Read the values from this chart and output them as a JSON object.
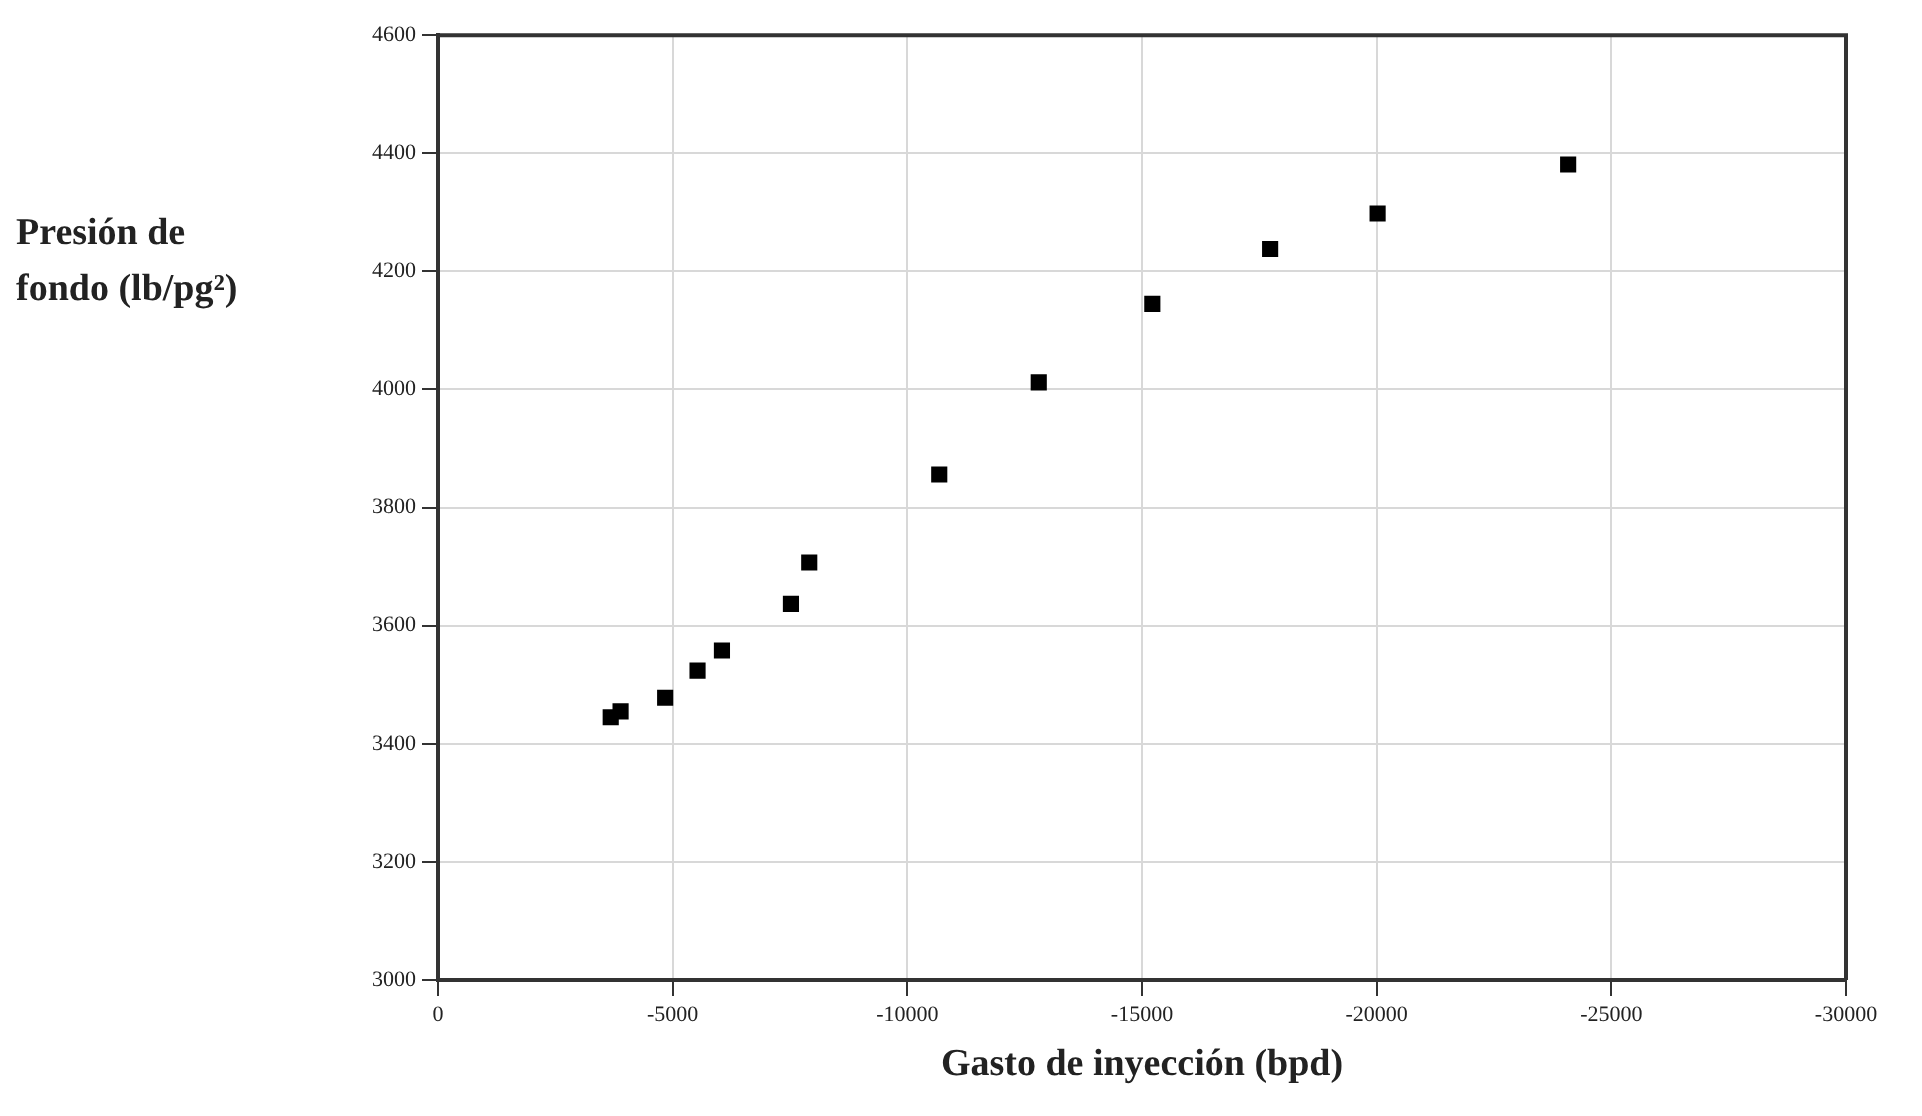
{
  "chart_data": {
    "type": "scatter",
    "xlabel": "Gasto de inyección (bpd)",
    "ylabel": "Presión de fondo (lb/pg²)",
    "x": [
      -3680,
      -3890,
      -4840,
      -5530,
      -6050,
      -7520,
      -7910,
      -10680,
      -12800,
      -15220,
      -17730,
      -20020,
      -24080
    ],
    "series": [
      {
        "color": "#000000",
        "values": [
          3445,
          3455,
          3478,
          3524,
          3558,
          3637,
          3707,
          3856,
          4012,
          4145,
          4238,
          4298,
          4381
        ]
      }
    ],
    "xlim": [
      0,
      -30000
    ],
    "xticks": [
      0,
      -5000,
      -10000,
      -15000,
      -20000,
      -25000,
      -30000
    ],
    "ylim": [
      3000,
      4600
    ],
    "yticks": [
      3000,
      3200,
      3400,
      3600,
      3800,
      4000,
      4200,
      4400,
      4600
    ],
    "grid": true,
    "legend": false,
    "marker": "square"
  }
}
